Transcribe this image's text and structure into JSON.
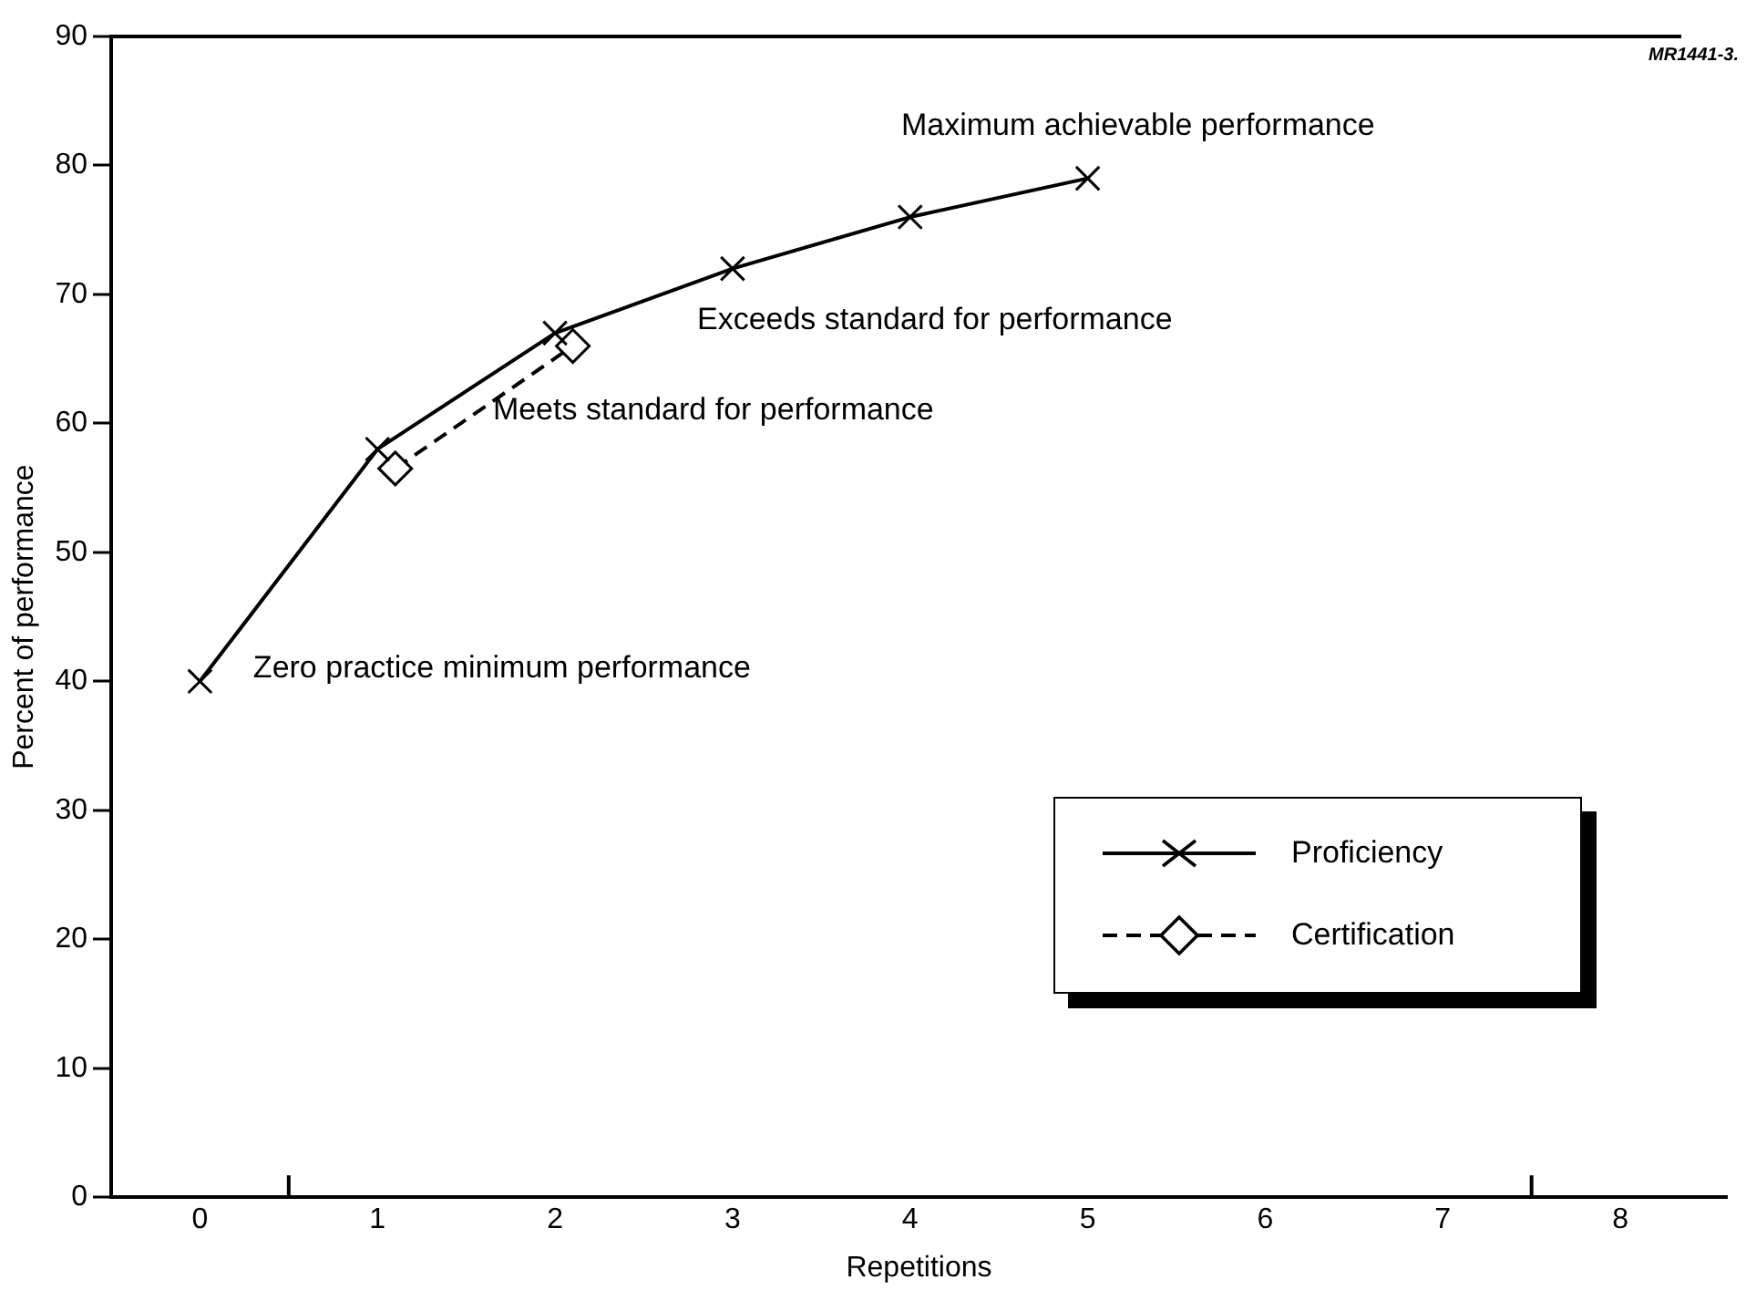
{
  "chart_data": {
    "type": "line",
    "xlabel": "Repetitions",
    "ylabel": "Percent of performance",
    "xlim": [
      -0.5,
      8.6
    ],
    "xticks": [
      0,
      {
        "value": 0.5,
        "label": null
      },
      1,
      2,
      3,
      4,
      5,
      6,
      7,
      {
        "value": 7.5,
        "label": null
      },
      8
    ],
    "ylim": [
      0,
      90
    ],
    "yticks": [
      0,
      10,
      20,
      30,
      40,
      50,
      60,
      70,
      80,
      90
    ],
    "grid": false,
    "legend": "bottom right",
    "series": [
      {
        "name": "Proficiency",
        "color": "#000000",
        "x": [
          0,
          1,
          2,
          3,
          4,
          5
        ],
        "values": [
          40,
          58,
          67,
          72,
          76,
          79
        ],
        "marker": "cross",
        "line_style": "solid"
      },
      {
        "name": "Certification",
        "color": "#000000",
        "x": [
          1.1,
          2.1
        ],
        "values": [
          56.5,
          66
        ],
        "marker": "diamond",
        "line_style": "dashed"
      }
    ],
    "annotations": [
      "Maximum achievable performance",
      "Exceeds standard for performance",
      "Meets standard for performance",
      "Zero practice minimum performance",
      "MR1441-3."
    ]
  }
}
